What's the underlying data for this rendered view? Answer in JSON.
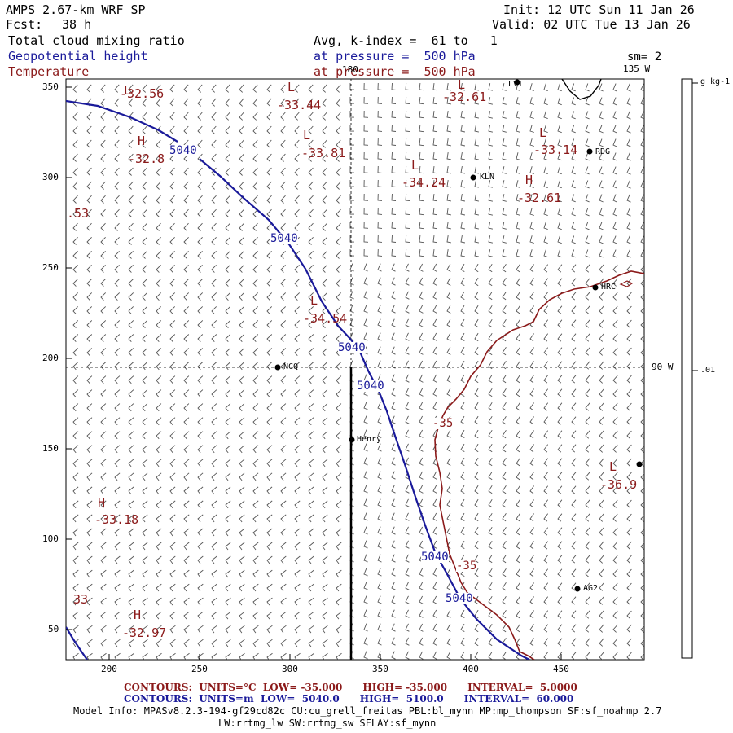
{
  "header": {
    "model": "AMPS 2.67-km WRF SP",
    "fcst_label": "Fcst:",
    "fcst_value": "38 h",
    "init": "Init: 12 UTC Sun 11 Jan 26",
    "valid": "Valid: 02 UTC Tue 13 Jan 26",
    "field1": "Total cloud mixing ratio",
    "field2": "Geopotential height",
    "field3": "Temperature",
    "avg": "Avg, k-index =  61 to   1",
    "pressure2": "at pressure =  500 hPa",
    "pressure3": "at pressure =  500 hPa",
    "sm": "sm= 2"
  },
  "colors": {
    "temperature": "#8b1a1a",
    "height": "#1a1a9a",
    "text": "#000000"
  },
  "map": {
    "y_ticks": [
      "350",
      "300",
      "250",
      "200",
      "150",
      "100",
      "50"
    ],
    "x_ticks": [
      "200",
      "250",
      "300",
      "350",
      "400",
      "450"
    ],
    "lon_180": "180",
    "lon_135": "135 W",
    "lon_90": "90 W",
    "colorbar_units": "g kg-1",
    "colorbar_value": ".01",
    "stations": [
      "LVT",
      "RDG",
      "KLN",
      "HRC",
      "NCQ",
      "Henry",
      "AG2"
    ],
    "height_labels": [
      "5040",
      "5040",
      "5040",
      "5040",
      "5040",
      "5040"
    ],
    "temp_labels": [
      "-35",
      "-35"
    ],
    "highs_lows": [
      {
        "mark": "L",
        "value": "-32.56"
      },
      {
        "mark": "L",
        "value": "-33.44"
      },
      {
        "mark": "L",
        "value": "-32.61"
      },
      {
        "mark": "H",
        "value": "-32.8"
      },
      {
        "mark": "L",
        "value": "-33.81"
      },
      {
        "mark": "L",
        "value": "-33.14"
      },
      {
        "mark": "L",
        "value": "-34.24"
      },
      {
        "mark": "H",
        "value": "-32.61"
      },
      {
        "mark": "L",
        "value": "-34.54"
      },
      {
        "mark": "L",
        "value": "-36.9"
      },
      {
        "mark": "H",
        "value": "-33.18"
      },
      {
        "mark": "H",
        "value": "-32.97"
      }
    ],
    "edge_values": [
      ".53",
      "33"
    ]
  },
  "footer": {
    "temp_contours": "CONTOURS:  UNITS=°C  LOW= -35.000      HIGH= -35.000      INTERVAL=  5.0000",
    "height_contours": "CONTOURS:  UNITS=m  LOW=  5040.0      HIGH=  5100.0      INTERVAL=  60.000",
    "model_info": "Model Info: MPASv8.2.3-194-gf29cd82c CU:cu_grell_freitas PBL:bl_mynn MP:mp_thompson SF:sf_noahmp 2.7",
    "model_info2": "LW:rrtmg_lw SW:rrtmg_sw SFLAY:sf_mynn"
  }
}
